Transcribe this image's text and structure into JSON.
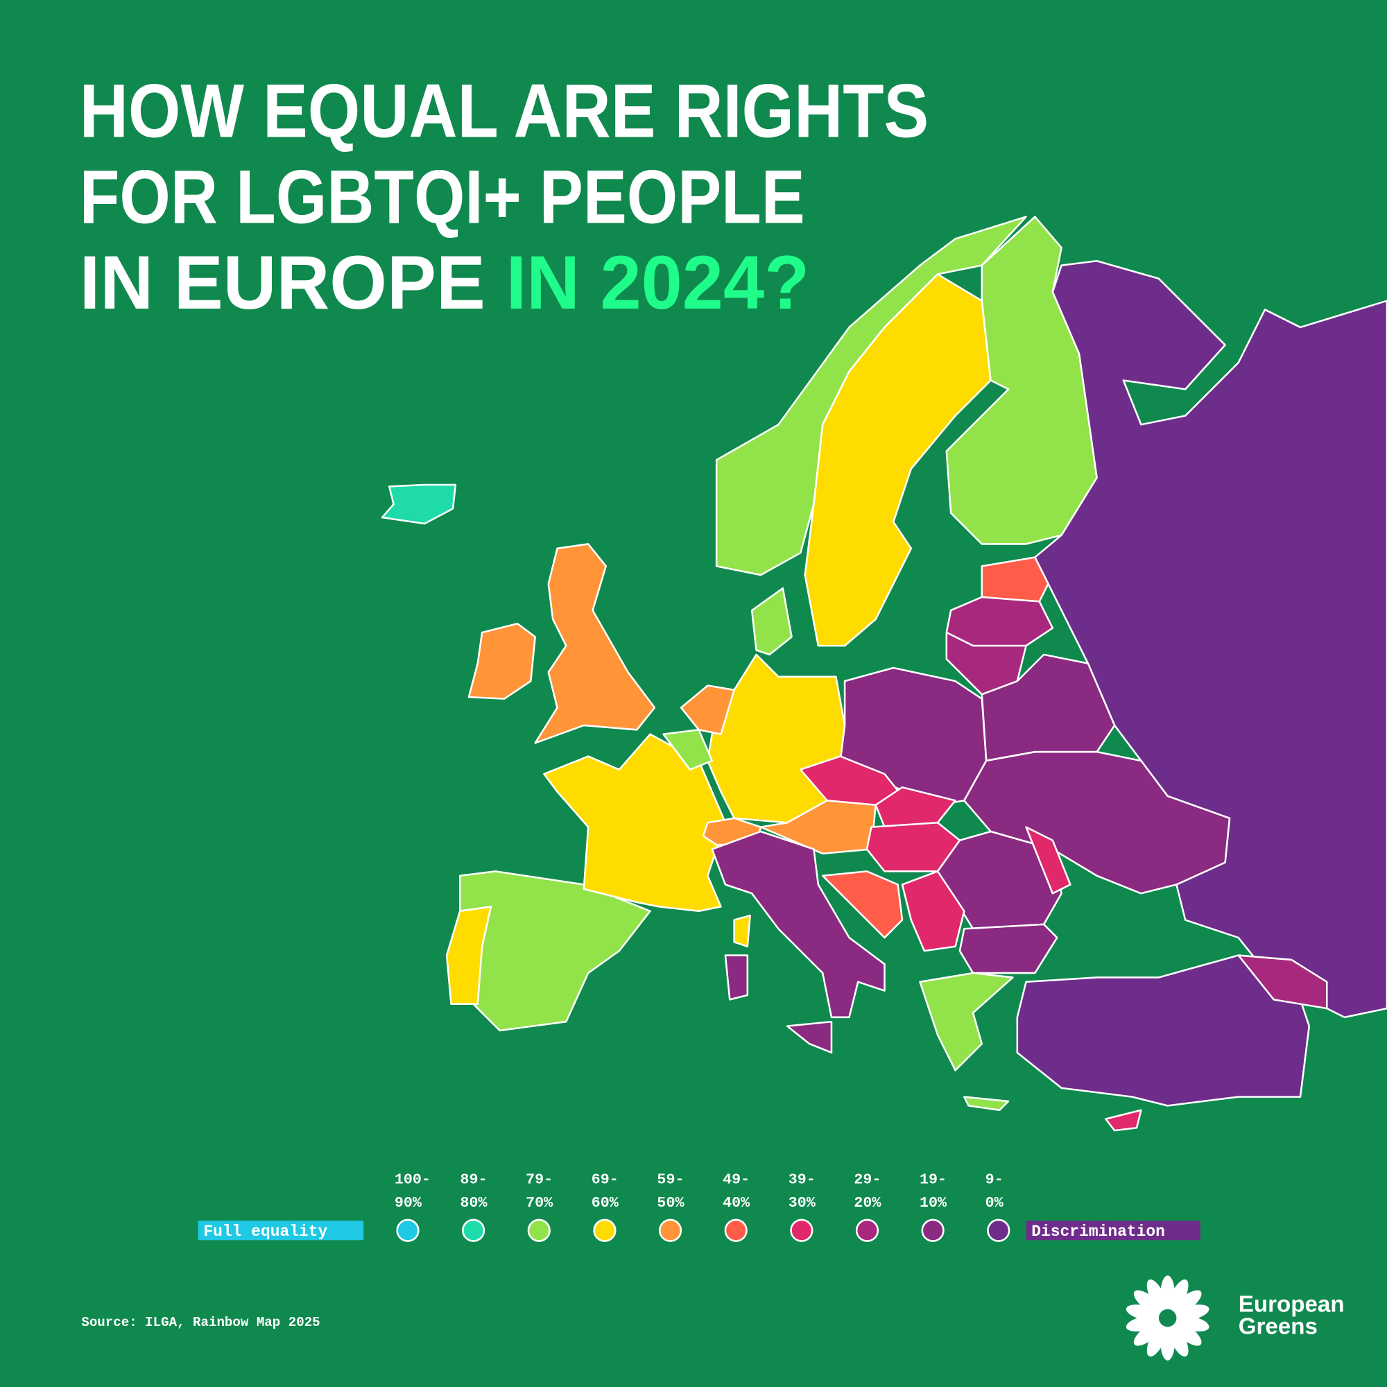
{
  "title": {
    "lines": [
      "HOW EQUAL ARE RIGHTS",
      "FOR LGBTQI+ PEOPLE",
      "IN EUROPE"
    ],
    "highlight": "IN 2024?"
  },
  "legend": {
    "low_label": "Full equality",
    "high_label": "Discrimination",
    "bins": [
      {
        "label": [
          "100-",
          "90%"
        ],
        "color": "#1fc8e3"
      },
      {
        "label": [
          "89-",
          "80%"
        ],
        "color": "#1fdbaa"
      },
      {
        "label": [
          "79-",
          "70%"
        ],
        "color": "#92e34a"
      },
      {
        "label": [
          "69-",
          "60%"
        ],
        "color": "#ffdc00"
      },
      {
        "label": [
          "59-",
          "50%"
        ],
        "color": "#ff9438"
      },
      {
        "label": [
          "49-",
          "40%"
        ],
        "color": "#ff5c4a"
      },
      {
        "label": [
          "39-",
          "30%"
        ],
        "color": "#e0286a"
      },
      {
        "label": [
          "29-",
          "20%"
        ],
        "color": "#a8287e"
      },
      {
        "label": [
          "19-",
          "10%"
        ],
        "color": "#8a2a80"
      },
      {
        "label": [
          "9-",
          "0%"
        ],
        "color": "#6e2d8a"
      }
    ]
  },
  "source": "Source: ILGA, Rainbow Map 2025",
  "logo": [
    "European",
    "Greens"
  ]
}
